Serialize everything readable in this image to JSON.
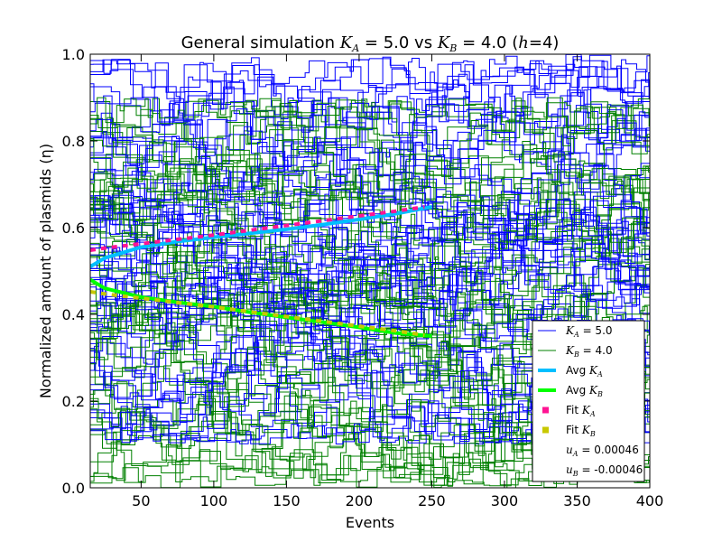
{
  "chart_data": {
    "type": "line",
    "title": "General simulation K_A = 5.0 vs K_B = 4.0 (h=4)",
    "title_parts": {
      "prefix": "General simulation ",
      "ka_symbol": "K",
      "ka_sub": "A",
      "ka_value": " = 5.0 vs ",
      "kb_symbol": "K",
      "kb_sub": "B",
      "kb_value": " = 4.0 (",
      "h_symbol": "h",
      "h_value": "=4)"
    },
    "xlabel": "Events",
    "ylabel": "Normalized amount of plasmids (η)",
    "xlim": [
      15,
      400
    ],
    "ylim": [
      0.0,
      1.0
    ],
    "xticks": [
      "50",
      "100",
      "150",
      "200",
      "250",
      "300",
      "350",
      "400"
    ],
    "xtick_values": [
      50,
      100,
      150,
      200,
      250,
      300,
      350,
      400
    ],
    "yticks": [
      "0.0",
      "0.2",
      "0.4",
      "0.6",
      "0.8",
      "1.0"
    ],
    "ytick_values": [
      0.0,
      0.2,
      0.4,
      0.6,
      0.8,
      1.0
    ],
    "grid": false,
    "legend_position": "lower right",
    "colors": {
      "ka_trace": "#0000ff",
      "kb_trace": "#008000",
      "avg_ka": "#00bfff",
      "avg_kb": "#00ff00",
      "fit_ka": "#ff1493",
      "fit_kb": "#c8c800"
    },
    "simulation_traces": {
      "ka_count": 60,
      "kb_count": 60,
      "ka_range": [
        0.1,
        1.0
      ],
      "kb_range": [
        0.0,
        0.9
      ],
      "x_end": 400
    },
    "series": [
      {
        "name": "Avg K_A",
        "kind": "avg",
        "x": [
          15,
          25,
          50,
          75,
          100,
          125,
          150,
          175,
          200,
          225,
          250
        ],
        "y": [
          0.51,
          0.53,
          0.555,
          0.568,
          0.578,
          0.587,
          0.596,
          0.607,
          0.619,
          0.632,
          0.648
        ]
      },
      {
        "name": "Avg K_B",
        "kind": "avg",
        "x": [
          15,
          25,
          50,
          75,
          100,
          125,
          150,
          175,
          200,
          225,
          250
        ],
        "y": [
          0.48,
          0.46,
          0.44,
          0.428,
          0.418,
          0.405,
          0.393,
          0.382,
          0.37,
          0.357,
          0.35
        ]
      },
      {
        "name": "Fit K_A",
        "kind": "fit",
        "x": [
          15,
          25,
          50,
          75,
          100,
          125,
          150,
          175,
          200,
          225,
          245
        ],
        "y": [
          0.548,
          0.553,
          0.563,
          0.573,
          0.583,
          0.594,
          0.605,
          0.616,
          0.627,
          0.638,
          0.648
        ]
      },
      {
        "name": "Fit K_B",
        "kind": "fit",
        "x": [
          15,
          25,
          50,
          75,
          100,
          125,
          150,
          175,
          200,
          225,
          245
        ],
        "y": [
          0.452,
          0.447,
          0.437,
          0.427,
          0.417,
          0.406,
          0.395,
          0.384,
          0.373,
          0.362,
          0.352
        ]
      }
    ],
    "legend": [
      {
        "type": "line",
        "color": "#0000ff",
        "width": 1,
        "sym": "K",
        "sub": "A",
        "rest": " = 5.0",
        "pre": ""
      },
      {
        "type": "line",
        "color": "#008000",
        "width": 1,
        "sym": "K",
        "sub": "B",
        "rest": " = 4.0",
        "pre": ""
      },
      {
        "type": "line",
        "color": "#00bfff",
        "width": 4,
        "pre": "Avg ",
        "sym": "K",
        "sub": "A",
        "rest": ""
      },
      {
        "type": "line",
        "color": "#00ff00",
        "width": 4,
        "pre": "Avg ",
        "sym": "K",
        "sub": "B",
        "rest": ""
      },
      {
        "type": "square",
        "color": "#ff1493",
        "pre": "Fit ",
        "sym": "K",
        "sub": "A",
        "rest": ""
      },
      {
        "type": "square",
        "color": "#c8c800",
        "pre": "Fit ",
        "sym": "K",
        "sub": "B",
        "rest": ""
      },
      {
        "type": "none",
        "pre": "",
        "sym": "u",
        "sub": "A",
        "rest": " = 0.00046"
      },
      {
        "type": "none",
        "pre": "",
        "sym": "u",
        "sub": "B",
        "rest": " = -0.00046"
      }
    ]
  }
}
